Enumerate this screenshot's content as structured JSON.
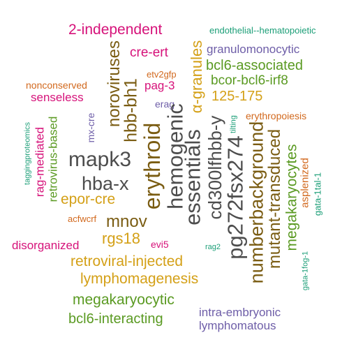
{
  "colors": {
    "gray": "#4d4d4d",
    "gold": "#d4a017",
    "olive": "#7a5c12",
    "magenta": "#d6127a",
    "green": "#5a9a22",
    "purple": "#6e5ea8",
    "orange": "#d2691e",
    "teal": "#1b9e77"
  },
  "words": [
    {
      "text": "2-independent"
    },
    {
      "text": "endothelial--hematopoietic"
    },
    {
      "text": "cre-ert"
    },
    {
      "text": "granulomonocytic"
    },
    {
      "text": "bcl6-associated"
    },
    {
      "text": "bcor-bcl6-irf8"
    },
    {
      "text": "etv2gfp"
    },
    {
      "text": "pag-3"
    },
    {
      "text": "nonconserved"
    },
    {
      "text": "125-175"
    },
    {
      "text": "senseless"
    },
    {
      "text": "erag"
    },
    {
      "text": "erythropoiesis"
    },
    {
      "text": "taggingproteomics"
    },
    {
      "text": "tilting"
    },
    {
      "text": "mapk3"
    },
    {
      "text": "hba-x"
    },
    {
      "text": "epor-cre"
    },
    {
      "text": "acfwcrf"
    },
    {
      "text": "mnov"
    },
    {
      "text": "rgs18"
    },
    {
      "text": "evi5"
    },
    {
      "text": "disorganized"
    },
    {
      "text": "rag2"
    },
    {
      "text": "retroviral-injected"
    },
    {
      "text": "lymphomagenesis"
    },
    {
      "text": "megakaryocytic"
    },
    {
      "text": "intra-embryonic"
    },
    {
      "text": "bcl6-interacting"
    },
    {
      "text": "lymphomatous"
    },
    {
      "text": "noroviruses"
    },
    {
      "text": "hbb-bh1"
    },
    {
      "text": "erythroid"
    },
    {
      "text": "hemogenic"
    },
    {
      "text": "α-granules"
    },
    {
      "text": "essentials"
    },
    {
      "text": "cd300lfhbb-y"
    },
    {
      "text": "pg272fsx274"
    },
    {
      "text": "numberbackground"
    },
    {
      "text": "mutant-transduced"
    },
    {
      "text": "megakaryocytes"
    },
    {
      "text": "asplenized"
    },
    {
      "text": "gata-1tal-1"
    },
    {
      "text": "gata-1fog-1"
    },
    {
      "text": "mx-cre"
    },
    {
      "text": "rag-mediated"
    },
    {
      "text": "retrovirus-based"
    }
  ]
}
